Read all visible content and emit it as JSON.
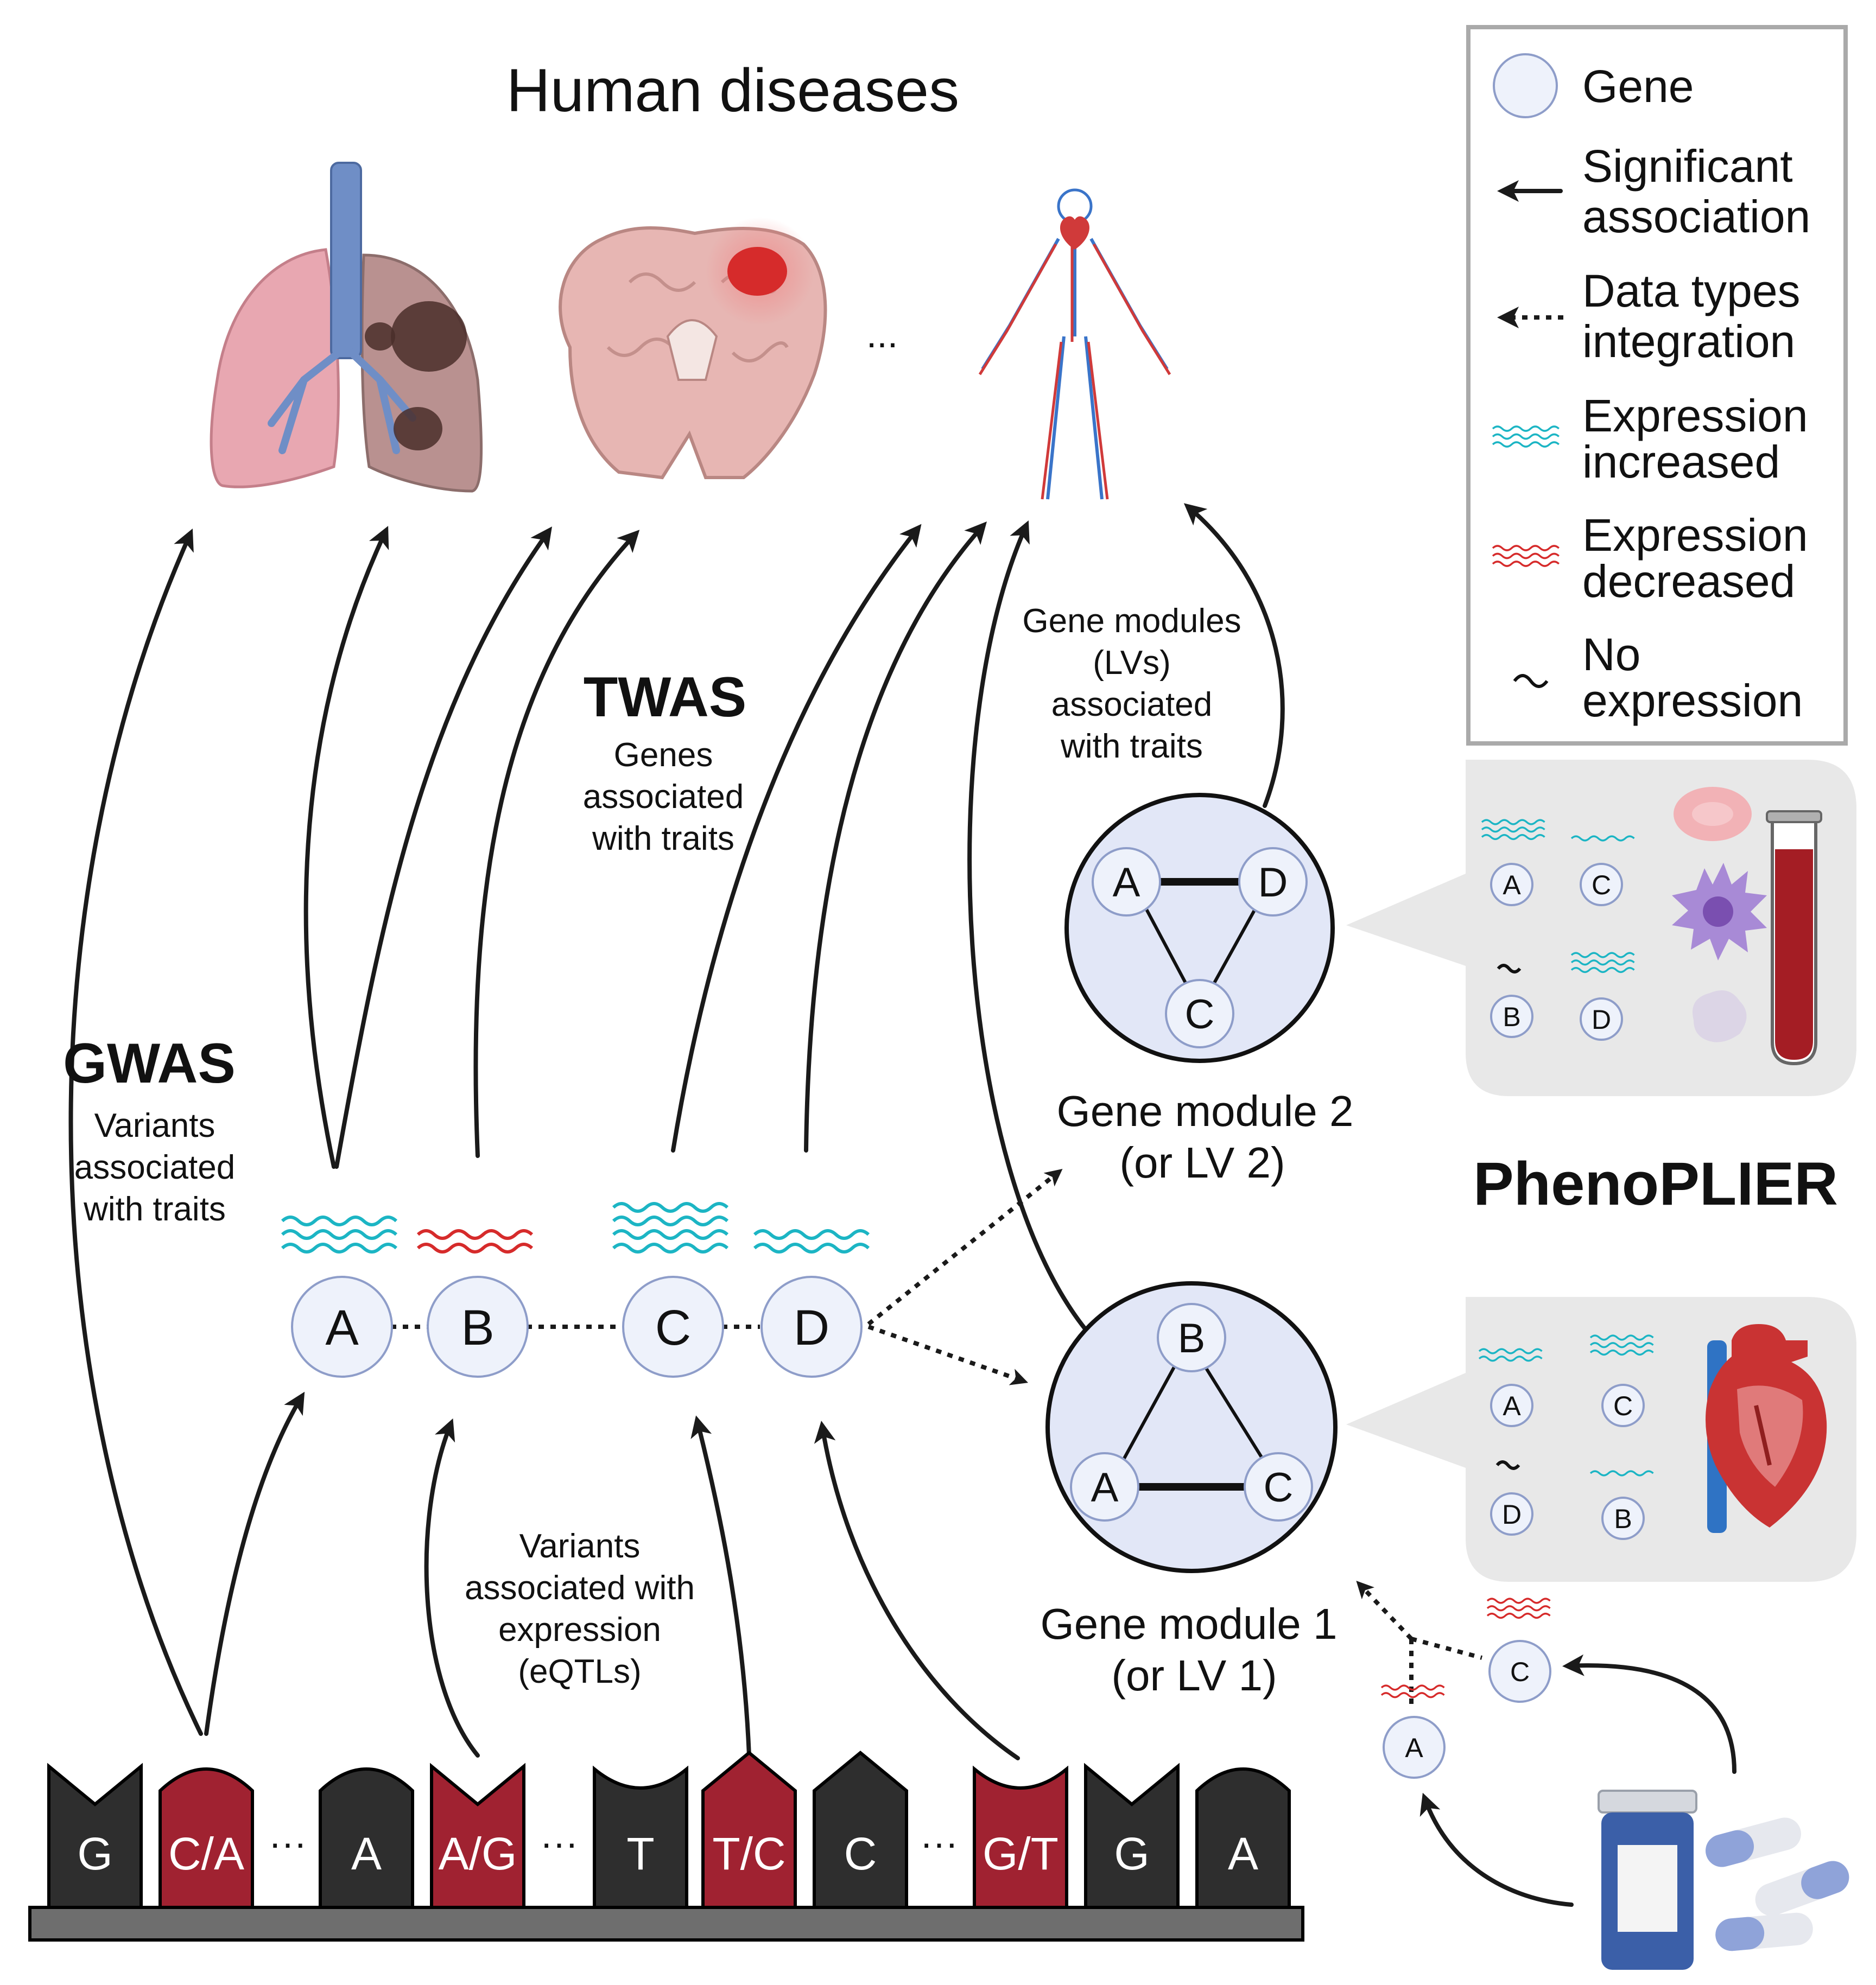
{
  "title": "Human diseases",
  "ellipsis": "...",
  "brand": "PhenoPLIER",
  "gwas": {
    "heading": "GWAS",
    "lines": [
      "Variants",
      "associated",
      "with traits"
    ]
  },
  "twas": {
    "heading": "TWAS",
    "lines": [
      "Genes",
      "associated",
      "with traits"
    ]
  },
  "modules_label": {
    "lines": [
      "Gene modules",
      "(LVs)",
      "associated",
      "with traits"
    ]
  },
  "eqtl_label": {
    "lines": [
      "Variants",
      "associated with",
      "expression",
      "(eQTLs)"
    ]
  },
  "genes": [
    "A",
    "B",
    "C",
    "D"
  ],
  "module2": {
    "lines": [
      "Gene module 2",
      "(or LV 2)"
    ],
    "nodes": [
      "A",
      "D",
      "C"
    ],
    "detail_nodes": [
      "A",
      "C",
      "B",
      "D"
    ]
  },
  "module1": {
    "lines": [
      "Gene module 1",
      "(or LV 1)"
    ],
    "nodes": [
      "B",
      "A",
      "C"
    ],
    "detail_nodes": [
      "A",
      "C",
      "D",
      "B"
    ]
  },
  "drug_targets": [
    "C",
    "A"
  ],
  "dna": {
    "bases": [
      "G",
      "C/A",
      "A",
      "A/G",
      "T",
      "T/C",
      "C",
      "G/T",
      "G",
      "A"
    ],
    "gap": "···"
  },
  "legend": {
    "gene": "Gene",
    "significant": [
      "Significant",
      "association"
    ],
    "integration": [
      "Data types",
      "integration"
    ],
    "increased": [
      "Expression",
      "increased"
    ],
    "decreased": [
      "Expression",
      "decreased"
    ],
    "none": [
      "No",
      "expression"
    ]
  },
  "colors": {
    "expression_increased": "#1cb5c4",
    "expression_decreased": "#d62b2b",
    "gene_fill": "#eef2fb",
    "module_fill": "#e2e7f7",
    "variant_red": "#a02231",
    "variant_dark": "#2e2e2e"
  },
  "icons": [
    "lungs-icon",
    "brain-tumor-icon",
    "circulatory-system-icon",
    "blood-cells-icon",
    "blood-tube-icon",
    "heart-icon",
    "pill-bottle-icon",
    "capsule-icon"
  ]
}
